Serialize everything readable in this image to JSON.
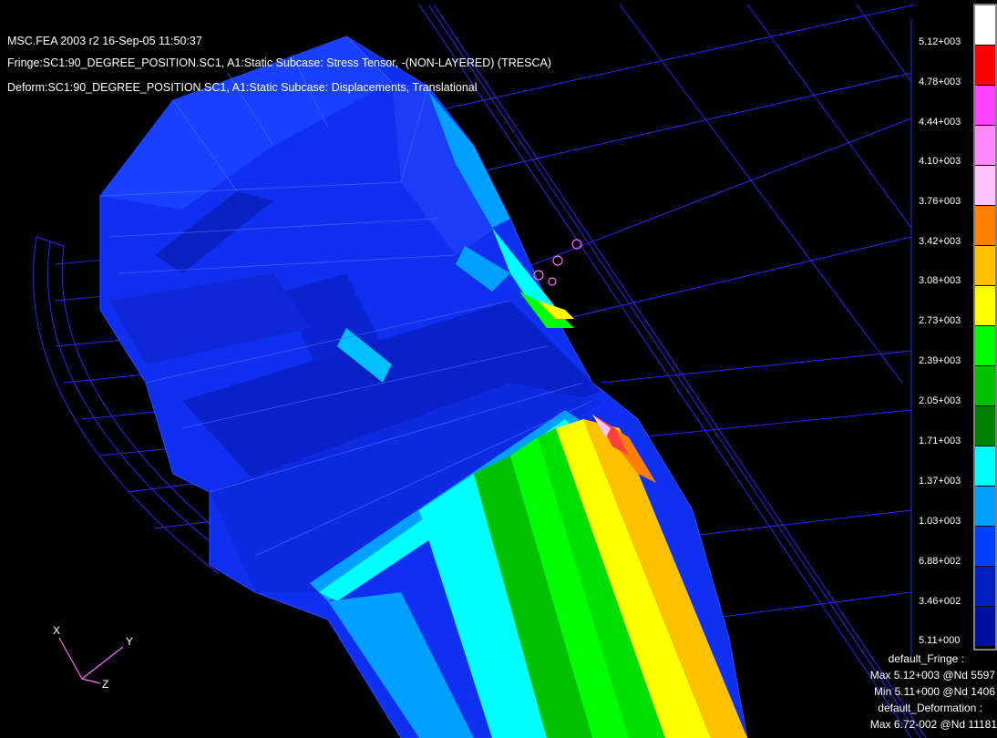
{
  "header": {
    "line1": "MSC.FEA 2003 r2 16-Sep-05 11:50:37",
    "line2": "Fringe:SC1:90_DEGREE_POSITION.SC1, A1:Static Subcase: Stress Tensor, -(NON-LAYERED) (TRESCA)",
    "line3": "Deform:SC1:90_DEGREE_POSITION.SC1, A1:Static Subcase: Displacements, Translational"
  },
  "legend": {
    "ticks": [
      "5.12+003",
      "4.78+003",
      "4.44+003",
      "4.10+003",
      "3.76+003",
      "3.42+003",
      "3.08+003",
      "2.73+003",
      "2.39+003",
      "2.05+003",
      "1.71+003",
      "1.37+003",
      "1.03+003",
      "6.88+002",
      "3.46+002",
      "5.11+000"
    ],
    "colors": [
      "#ff0000",
      "#ff44ff",
      "#ff88ff",
      "#ffc4ff",
      "#ff8000",
      "#ffc000",
      "#ffff00",
      "#00ff00",
      "#00c000",
      "#008000",
      "#00ffff",
      "#00a0ff",
      "#0040ff",
      "#0020c0",
      "#0010a0"
    ],
    "top_color": "#ffffff"
  },
  "footer": {
    "line1": "default_Fringe :",
    "line2": "Max 5.12+003 @Nd 5597",
    "line3": "Min 5.11+000 @Nd 1406",
    "line4": "default_Deformation :",
    "line5": "Max 6.72-002 @Nd 11181"
  },
  "triad": {
    "x": "X",
    "y": "Y",
    "z": "Z"
  },
  "colors": {
    "background": "#000000",
    "wire": "#2020ff",
    "mesh_blue": "#1030f0",
    "mesh_dark": "#0a1fd0"
  }
}
